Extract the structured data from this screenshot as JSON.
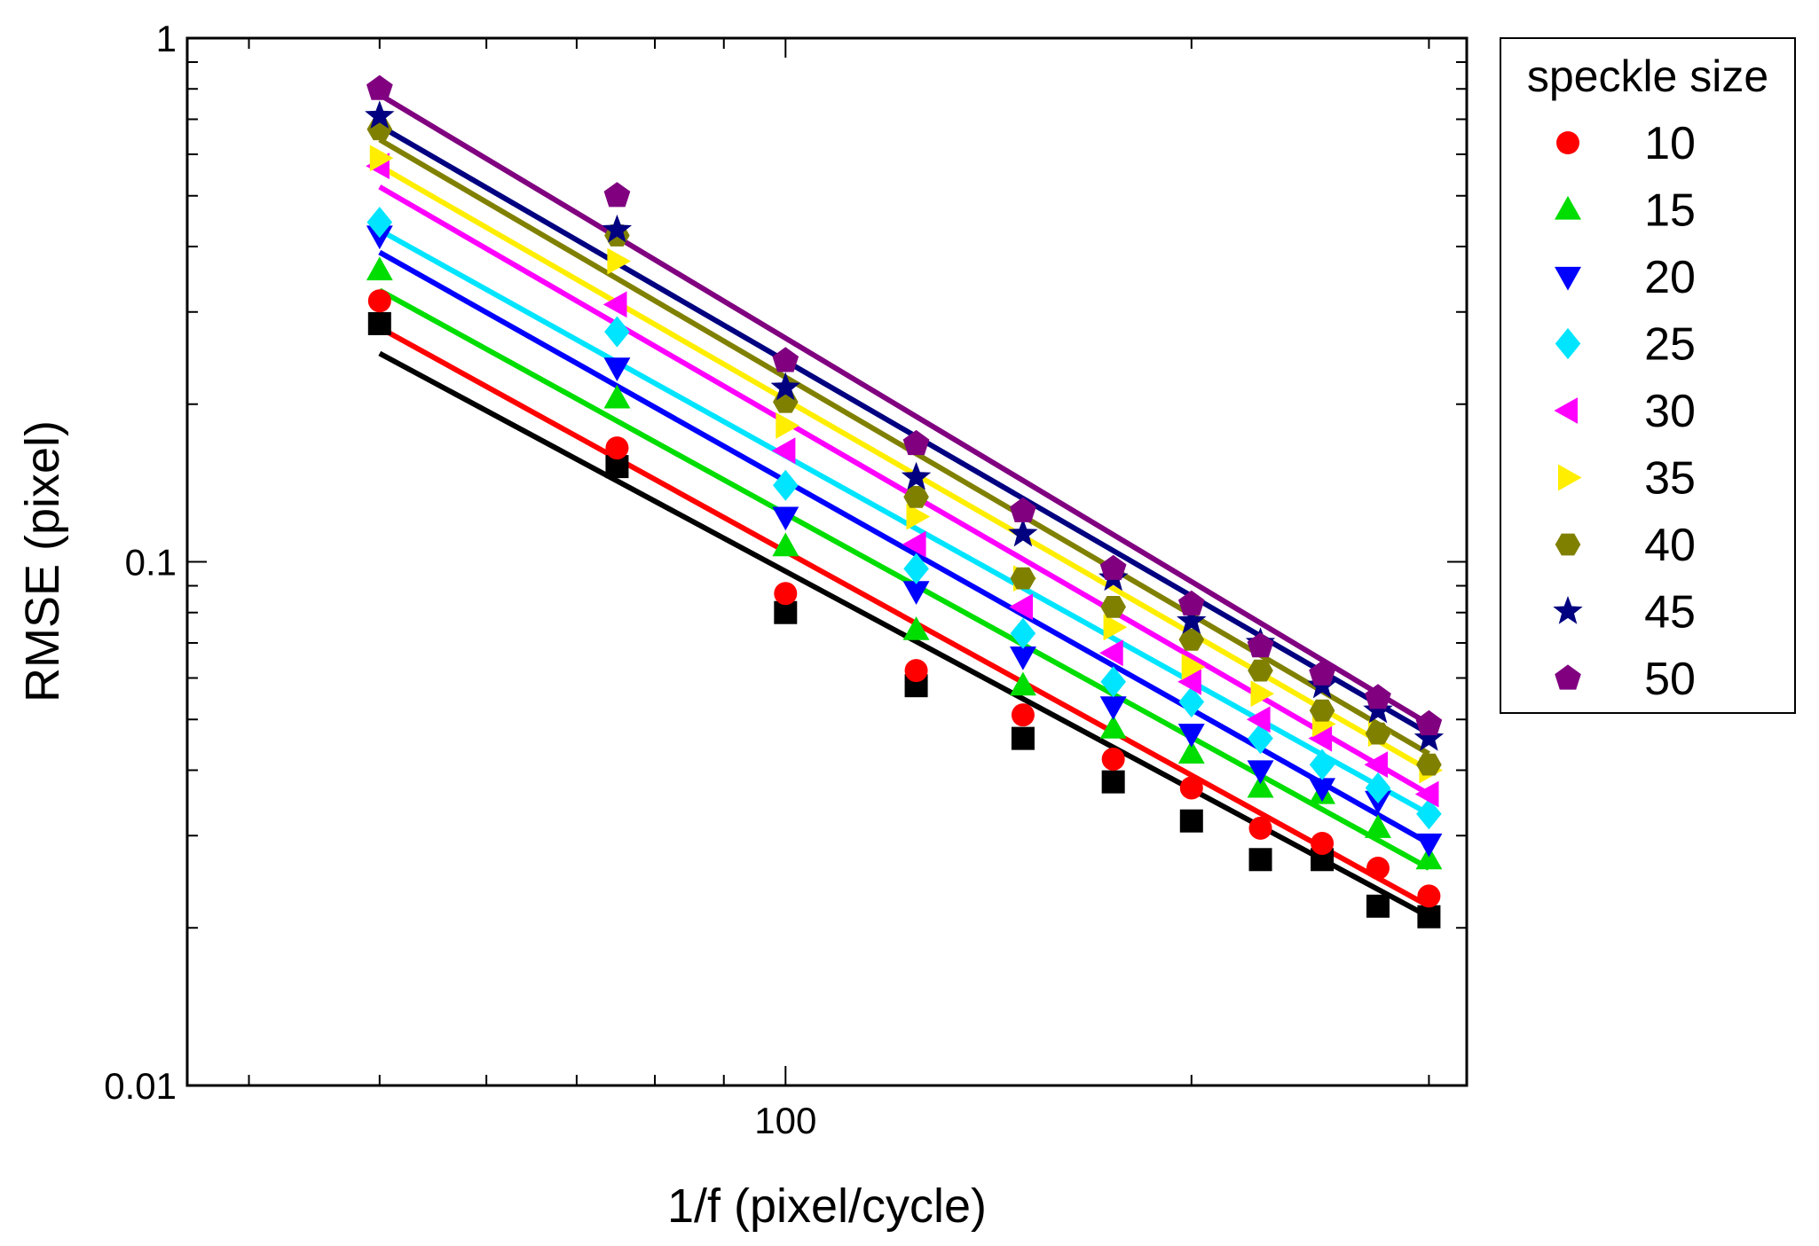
{
  "chart_data": {
    "type": "scatter",
    "xscale": "log",
    "yscale": "log",
    "xlabel": "1/f (pixel/cycle)",
    "ylabel": "RMSE (pixel)",
    "xlim": [
      36,
      320
    ],
    "ylim": [
      0.01,
      1
    ],
    "x_tick_labels": [
      {
        "value": 100,
        "label": "100"
      }
    ],
    "y_tick_labels": [
      {
        "value": 1,
        "label": "1"
      },
      {
        "value": 0.1,
        "label": "0.1"
      },
      {
        "value": 0.01,
        "label": "0.01"
      }
    ],
    "legend_title": "speckle size",
    "legend_position": "outside-right-top",
    "x": [
      50,
      75,
      100,
      125,
      150,
      175,
      200,
      225,
      250,
      275,
      300
    ],
    "series": [
      {
        "name": "",
        "in_legend": false,
        "marker": "square",
        "color": "#000000",
        "values": [
          0.285,
          0.152,
          0.08,
          0.058,
          0.046,
          0.038,
          0.032,
          0.027,
          0.027,
          0.022,
          0.021
        ],
        "fit": [
          0.25,
          0.021
        ]
      },
      {
        "name": "10",
        "in_legend": true,
        "marker": "circle",
        "color": "#ff0000",
        "values": [
          0.315,
          0.165,
          0.087,
          0.062,
          0.051,
          0.042,
          0.037,
          0.031,
          0.029,
          0.026,
          0.023
        ],
        "fit": [
          0.28,
          0.022
        ]
      },
      {
        "name": "15",
        "in_legend": true,
        "marker": "triangle-up",
        "color": "#00dd00",
        "values": [
          0.36,
          0.205,
          0.107,
          0.074,
          0.058,
          0.048,
          0.043,
          0.037,
          0.036,
          0.031,
          0.027
        ],
        "fit": [
          0.33,
          0.026
        ]
      },
      {
        "name": "20",
        "in_legend": true,
        "marker": "triangle-down",
        "color": "#0000ff",
        "values": [
          0.42,
          0.235,
          0.122,
          0.088,
          0.066,
          0.053,
          0.047,
          0.04,
          0.037,
          0.035,
          0.029
        ],
        "fit": [
          0.39,
          0.029
        ]
      },
      {
        "name": "25",
        "in_legend": true,
        "marker": "diamond",
        "color": "#00e5ff",
        "values": [
          0.445,
          0.275,
          0.14,
          0.097,
          0.073,
          0.059,
          0.054,
          0.046,
          0.041,
          0.037,
          0.033
        ],
        "fit": [
          0.43,
          0.033
        ]
      },
      {
        "name": "30",
        "in_legend": true,
        "marker": "triangle-left",
        "color": "#ff00ff",
        "values": [
          0.57,
          0.31,
          0.163,
          0.108,
          0.082,
          0.067,
          0.059,
          0.05,
          0.046,
          0.041,
          0.036
        ],
        "fit": [
          0.52,
          0.036
        ]
      },
      {
        "name": "35",
        "in_legend": true,
        "marker": "triangle-right",
        "color": "#ffee00",
        "values": [
          0.59,
          0.375,
          0.182,
          0.122,
          0.093,
          0.075,
          0.063,
          0.056,
          0.049,
          0.047,
          0.04
        ],
        "fit": [
          0.57,
          0.04
        ]
      },
      {
        "name": "40",
        "in_legend": true,
        "marker": "hexagon",
        "color": "#808000",
        "values": [
          0.67,
          0.42,
          0.202,
          0.133,
          0.093,
          0.082,
          0.071,
          0.062,
          0.052,
          0.047,
          0.041
        ],
        "fit": [
          0.64,
          0.043
        ]
      },
      {
        "name": "45",
        "in_legend": true,
        "marker": "star",
        "color": "#000080",
        "values": [
          0.71,
          0.43,
          0.215,
          0.145,
          0.113,
          0.093,
          0.077,
          0.07,
          0.058,
          0.052,
          0.046
        ],
        "fit": [
          0.68,
          0.047
        ]
      },
      {
        "name": "50",
        "in_legend": true,
        "marker": "pentagon",
        "color": "#800080",
        "values": [
          0.8,
          0.5,
          0.242,
          0.168,
          0.125,
          0.097,
          0.083,
          0.069,
          0.061,
          0.055,
          0.049
        ],
        "fit": [
          0.78,
          0.049
        ]
      }
    ]
  }
}
